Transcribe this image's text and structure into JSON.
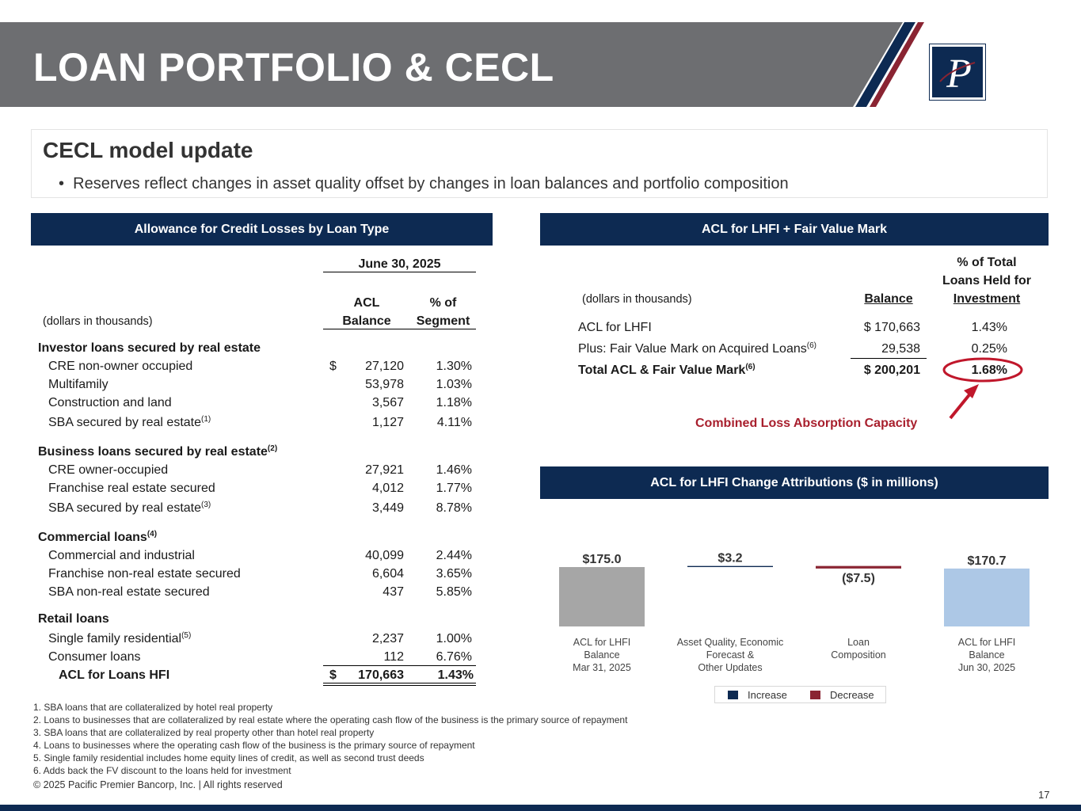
{
  "header": {
    "title": "LOAN PORTFOLIO & CECL",
    "logo_glyph": "P"
  },
  "colors": {
    "banner_gray": "#6d6e71",
    "navy": "#0d2a52",
    "maroon": "#8a2432",
    "red_annotation": "#c0172b",
    "light_gray_bar": "#a6a6a6",
    "light_blue_bar": "#adc8e6"
  },
  "intro": {
    "title": "CECL model update",
    "bullet": "Reserves reflect changes in asset quality offset by changes in loan balances and portfolio composition"
  },
  "left_table": {
    "header": "Allowance for Credit Losses by Loan Type",
    "period": "June 30, 2025",
    "units": "(dollars in thousands)",
    "col_acl_1": "ACL",
    "col_acl_2": "Balance",
    "col_pct_1": "% of",
    "col_pct_2": "Segment",
    "sections": {
      "investor": "Investor loans secured by real estate",
      "business": "Business loans secured by real estate",
      "business_note": "(2)",
      "commercial": "Commercial loans",
      "commercial_note": "(4)",
      "retail": "Retail loans"
    },
    "rows": {
      "cre_non_owner": {
        "label": "CRE non-owner occupied",
        "currency": "$",
        "balance": "27,120",
        "pct": "1.30%"
      },
      "multifamily": {
        "label": "Multifamily",
        "balance": "53,978",
        "pct": "1.03%"
      },
      "construction": {
        "label": "Construction and land",
        "balance": "3,567",
        "pct": "1.18%"
      },
      "sba_re_1": {
        "label": "SBA secured by real estate",
        "note": "(1)",
        "balance": "1,127",
        "pct": "4.11%"
      },
      "cre_owner": {
        "label": "CRE owner-occupied",
        "balance": "27,921",
        "pct": "1.46%"
      },
      "franchise_re": {
        "label": "Franchise real estate secured",
        "balance": "4,012",
        "pct": "1.77%"
      },
      "sba_re_3": {
        "label": "SBA secured by real estate",
        "note": "(3)",
        "balance": "3,449",
        "pct": "8.78%"
      },
      "cni": {
        "label": "Commercial and industrial",
        "balance": "40,099",
        "pct": "2.44%"
      },
      "franchise_non_re": {
        "label": "Franchise non-real estate secured",
        "balance": "6,604",
        "pct": "3.65%"
      },
      "sba_non_re": {
        "label": "SBA non-real estate secured",
        "balance": "437",
        "pct": "5.85%"
      },
      "sfr": {
        "label": "Single family residential",
        "note": "(5)",
        "balance": "2,237",
        "pct": "1.00%"
      },
      "consumer": {
        "label": "Consumer loans",
        "balance": "112",
        "pct": "6.76%"
      }
    },
    "total": {
      "label": "ACL for Loans HFI",
      "currency": "$",
      "balance": "170,663",
      "pct": "1.43%"
    }
  },
  "right_table": {
    "header": "ACL for LHFI + Fair Value Mark",
    "units": "(dollars in thousands)",
    "col_balance": "Balance",
    "col_pct_1": "% of Total",
    "col_pct_2": "Loans Held for",
    "col_pct_3": "Investment",
    "rows": [
      {
        "label": "ACL for LHFI",
        "note": "",
        "balance": "$ 170,663",
        "pct": "1.43%"
      },
      {
        "label": "Plus: Fair Value Mark on Acquired Loans",
        "note": "(6)",
        "balance": "29,538",
        "pct": "0.25%"
      },
      {
        "label": "Total ACL & Fair Value Mark",
        "note": "(6)",
        "balance": "$ 200,201",
        "pct": "1.68%"
      }
    ],
    "annotation": "Combined Loss Absorption Capacity"
  },
  "chart_data": {
    "type": "bar",
    "subtype": "waterfall",
    "title": "ACL for LHFI Change Attributions ($ in millions)",
    "categories": [
      "ACL for LHFI\nBalance\nMar 31, 2025",
      "Asset Quality, Economic\nForecast &\nOther Updates",
      "Loan\nComposition",
      "ACL for LHFI\nBalance\nJun 30, 2025"
    ],
    "values": [
      175.0,
      3.2,
      -7.5,
      170.7
    ],
    "data_labels": [
      "$175.0",
      "$3.2",
      "($7.5)",
      "$170.7"
    ],
    "legend": [
      "Increase",
      "Decrease"
    ],
    "legend_position": "bottom"
  },
  "footnotes": [
    "1. SBA loans that are collateralized by hotel real property",
    "2. Loans to businesses that are collateralized by real estate where the operating cash flow of the business is the primary source of repayment",
    "3. SBA loans that are collateralized by real property other than hotel real property",
    "4. Loans to businesses where the operating cash flow of the business is the primary source of repayment",
    "5. Single family residential includes home equity lines of credit, as well as second trust deeds",
    "6. Adds back the FV discount to the loans held for investment"
  ],
  "copyright": "© 2025 Pacific Premier Bancorp, Inc. | All rights reserved",
  "page_number": "17"
}
